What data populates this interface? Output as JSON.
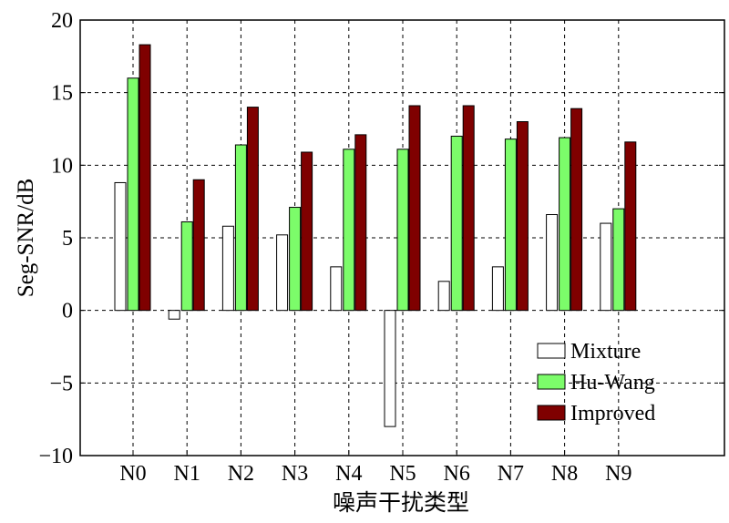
{
  "chart_data": {
    "type": "bar",
    "categories": [
      "N0",
      "N1",
      "N2",
      "N3",
      "N4",
      "N5",
      "N6",
      "N7",
      "N8",
      "N9"
    ],
    "series": [
      {
        "name": "Mixture",
        "color": "#ffffff",
        "values": [
          8.8,
          -0.6,
          5.8,
          5.2,
          3.0,
          -8.0,
          2.0,
          3.0,
          6.6,
          6.0
        ]
      },
      {
        "name": "Hu-Wang",
        "color": "#7cfc6a",
        "values": [
          16.0,
          6.1,
          11.4,
          7.1,
          11.1,
          11.1,
          12.0,
          11.8,
          11.9,
          7.0
        ]
      },
      {
        "name": "Improved",
        "color": "#7f0000",
        "values": [
          18.3,
          9.0,
          14.0,
          10.9,
          12.1,
          14.1,
          14.1,
          13.0,
          13.9,
          11.6
        ]
      }
    ],
    "xlabel": "噪声干扰类型",
    "ylabel": "Seg-SNR/dB",
    "ylim": [
      -10,
      20
    ],
    "yticks": [
      -10,
      -5,
      0,
      5,
      10,
      15,
      20
    ],
    "yticklabels": [
      "−10",
      "−5",
      "0",
      "5",
      "10",
      "15",
      "20"
    ],
    "grid": true,
    "legend_position": "bottom-right"
  }
}
